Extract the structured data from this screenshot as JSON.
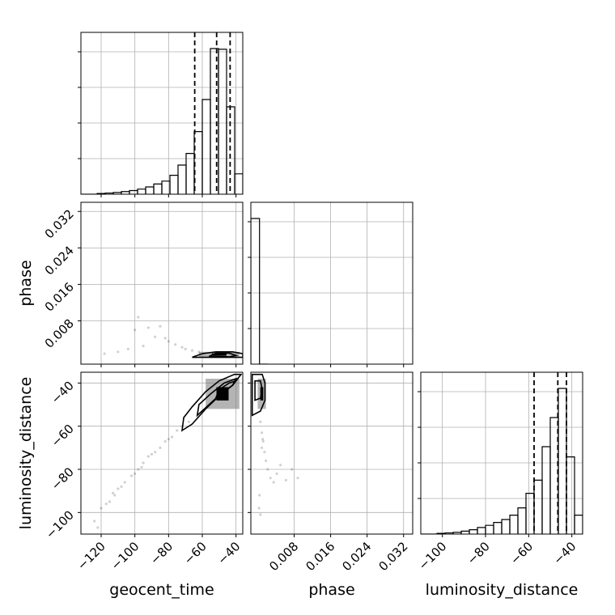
{
  "chart_data": {
    "type": "corner",
    "title": "",
    "parameters": [
      "geocent_time",
      "phase",
      "luminosity_distance"
    ],
    "axis_labels": {
      "x": [
        "geocent_time",
        "phase",
        "luminosity_distance"
      ],
      "y_phase": "phase",
      "y_luminosity_distance": "luminosity_distance"
    },
    "ticks": {
      "geocent_time": [
        -120,
        -100,
        -80,
        -60,
        -40
      ],
      "phase": [
        0.008,
        0.016,
        0.024,
        0.032
      ],
      "luminosity_distance": [
        -100,
        -80,
        -60,
        -40
      ]
    },
    "tick_labels": {
      "geocent_time": [
        "−120",
        "−100",
        "−80",
        "−60",
        "−40"
      ],
      "phase": [
        "0.008",
        "0.016",
        "0.024",
        "0.032"
      ],
      "luminosity_distance": [
        "−100",
        "−80",
        "−60",
        "−40"
      ]
    },
    "ranges": {
      "geocent_time": [
        -132,
        -36
      ],
      "phase": [
        -0.0015,
        0.034
      ],
      "luminosity_distance": [
        -110,
        -35
      ]
    },
    "grid": true,
    "hist_geocent_time": {
      "edges": [
        -132,
        -127.2,
        -122.4,
        -117.6,
        -112.8,
        -108,
        -103.2,
        -98.4,
        -93.6,
        -88.8,
        -84,
        -79.2,
        -74.4,
        -69.6,
        -64.8,
        -60,
        -55.2,
        -50.4,
        -45.6,
        -40.8,
        -36
      ],
      "counts": [
        0,
        0,
        0.005,
        0.008,
        0.012,
        0.018,
        0.025,
        0.035,
        0.05,
        0.07,
        0.09,
        0.13,
        0.2,
        0.28,
        0.43,
        0.65,
        1.0,
        0.995,
        0.6,
        0.14
      ],
      "quantiles": [
        -64.5,
        -51.5,
        -43.5
      ]
    },
    "hist_phase": {
      "edges": [
        -0.0015,
        0.0004,
        0.0023
      ],
      "counts": [
        1.0,
        0
      ],
      "quantiles": []
    },
    "hist_luminosity_distance": {
      "edges": [
        -110,
        -106.25,
        -102.5,
        -98.75,
        -95,
        -91.25,
        -87.5,
        -83.75,
        -80,
        -76.25,
        -72.5,
        -68.75,
        -65,
        -61.25,
        -57.5,
        -53.75,
        -50,
        -46.25,
        -42.5,
        -38.75,
        -35
      ],
      "counts": [
        0,
        0,
        0.005,
        0.008,
        0.012,
        0.02,
        0.03,
        0.045,
        0.06,
        0.08,
        0.1,
        0.13,
        0.18,
        0.28,
        0.37,
        0.6,
        0.8,
        1.0,
        0.53,
        0.13
      ],
      "quantiles": [
        -57.5,
        -46.5,
        -42.5
      ]
    },
    "scatter_phase_vs_geocent_time": {
      "points": [
        [
          -98,
          0.0088
        ],
        [
          -92,
          0.0065
        ],
        [
          -88,
          0.0045
        ],
        [
          -85,
          0.0068
        ],
        [
          -80,
          0.0035
        ],
        [
          -76,
          0.0028
        ],
        [
          -72,
          0.0022
        ],
        [
          -70,
          0.0018
        ],
        [
          -66,
          0.0015
        ],
        [
          -62,
          0.0012
        ],
        [
          -110,
          0.0012
        ],
        [
          -118,
          0.0008
        ],
        [
          -104,
          0.0018
        ],
        [
          -95,
          0.0025
        ],
        [
          -82,
          0.0042
        ],
        [
          -100,
          0.006
        ]
      ],
      "density_core": {
        "x": [
          -62,
          -38
        ],
        "y": [
          0.0,
          0.0012
        ]
      },
      "contours": [
        [
          [
            -66,
            0.0
          ],
          [
            -60,
            0.0008
          ],
          [
            -52,
            0.0012
          ],
          [
            -42,
            0.0012
          ],
          [
            -36,
            0.0008
          ],
          [
            -36,
            0.0
          ],
          [
            -66,
            0.0
          ]
        ],
        [
          [
            -56,
            0.0002
          ],
          [
            -52,
            0.0009
          ],
          [
            -44,
            0.0009
          ],
          [
            -40,
            0.0004
          ],
          [
            -44,
            0.0001
          ],
          [
            -56,
            0.0002
          ]
        ]
      ]
    },
    "scatter_luminosity_distance_vs_geocent_time": {
      "points": [
        [
          -124,
          -104
        ],
        [
          -120,
          -98
        ],
        [
          -117,
          -96
        ],
        [
          -113,
          -91
        ],
        [
          -110,
          -89
        ],
        [
          -106,
          -86
        ],
        [
          -102,
          -83
        ],
        [
          -98,
          -80
        ],
        [
          -95,
          -77
        ],
        [
          -92,
          -74
        ],
        [
          -88,
          -72
        ],
        [
          -85,
          -70
        ],
        [
          -82,
          -67
        ],
        [
          -78,
          -65
        ],
        [
          -75,
          -62
        ],
        [
          -72,
          -60
        ],
        [
          -68,
          -58
        ],
        [
          -115,
          -95
        ],
        [
          -108,
          -88
        ],
        [
          -100,
          -82
        ],
        [
          -90,
          -73
        ],
        [
          -80,
          -66
        ],
        [
          -122,
          -107
        ],
        [
          -112,
          -92
        ],
        [
          -96,
          -79
        ]
      ],
      "density_core": {
        "x": [
          -58,
          -38
        ],
        "y": [
          -52,
          -38
        ]
      },
      "contours": [
        [
          [
            -72,
            -62
          ],
          [
            -66,
            -59
          ],
          [
            -58,
            -52
          ],
          [
            -50,
            -46
          ],
          [
            -42,
            -41
          ],
          [
            -37,
            -36
          ],
          [
            -41,
            -36
          ],
          [
            -50,
            -39
          ],
          [
            -58,
            -44
          ],
          [
            -66,
            -51
          ],
          [
            -71,
            -56
          ],
          [
            -72,
            -62
          ]
        ],
        [
          [
            -63,
            -55
          ],
          [
            -56,
            -50
          ],
          [
            -49,
            -45
          ],
          [
            -42,
            -41
          ],
          [
            -40,
            -38
          ],
          [
            -47,
            -40
          ],
          [
            -55,
            -45
          ],
          [
            -62,
            -50
          ],
          [
            -63,
            -55
          ]
        ],
        [
          [
            -52,
            -47
          ],
          [
            -47,
            -44
          ],
          [
            -42,
            -41
          ],
          [
            -40,
            -39
          ],
          [
            -44,
            -40
          ],
          [
            -50,
            -43
          ],
          [
            -52,
            -47
          ]
        ]
      ]
    },
    "scatter_luminosity_distance_vs_phase": {
      "points": [
        [
          0.0006,
          -58
        ],
        [
          0.0009,
          -63
        ],
        [
          0.0012,
          -67
        ],
        [
          0.0015,
          -72
        ],
        [
          0.0018,
          -76
        ],
        [
          0.0022,
          -80
        ],
        [
          0.0028,
          -84
        ],
        [
          0.0035,
          -86
        ],
        [
          0.0042,
          -82
        ],
        [
          0.005,
          -78
        ],
        [
          0.0062,
          -85
        ],
        [
          0.0075,
          -80
        ],
        [
          0.0088,
          -84
        ],
        [
          0.0004,
          -92
        ],
        [
          0.0003,
          -98
        ],
        [
          0.0006,
          -101
        ],
        [
          0.0009,
          -70
        ],
        [
          0.0011,
          -66
        ]
      ],
      "density_core": {
        "x": [
          0.0,
          0.0018
        ],
        "y": [
          -52,
          -38
        ]
      },
      "contours": [
        [
          [
            -0.0012,
            -55
          ],
          [
            0.0006,
            -53
          ],
          [
            0.0016,
            -48
          ],
          [
            0.0016,
            -40
          ],
          [
            0.001,
            -36
          ],
          [
            -0.0012,
            -36
          ],
          [
            -0.0012,
            -55
          ]
        ],
        [
          [
            -0.0006,
            -48
          ],
          [
            0.0006,
            -47
          ],
          [
            0.001,
            -43
          ],
          [
            0.0006,
            -39
          ],
          [
            -0.0006,
            -39
          ],
          [
            -0.0006,
            -48
          ]
        ]
      ]
    }
  }
}
